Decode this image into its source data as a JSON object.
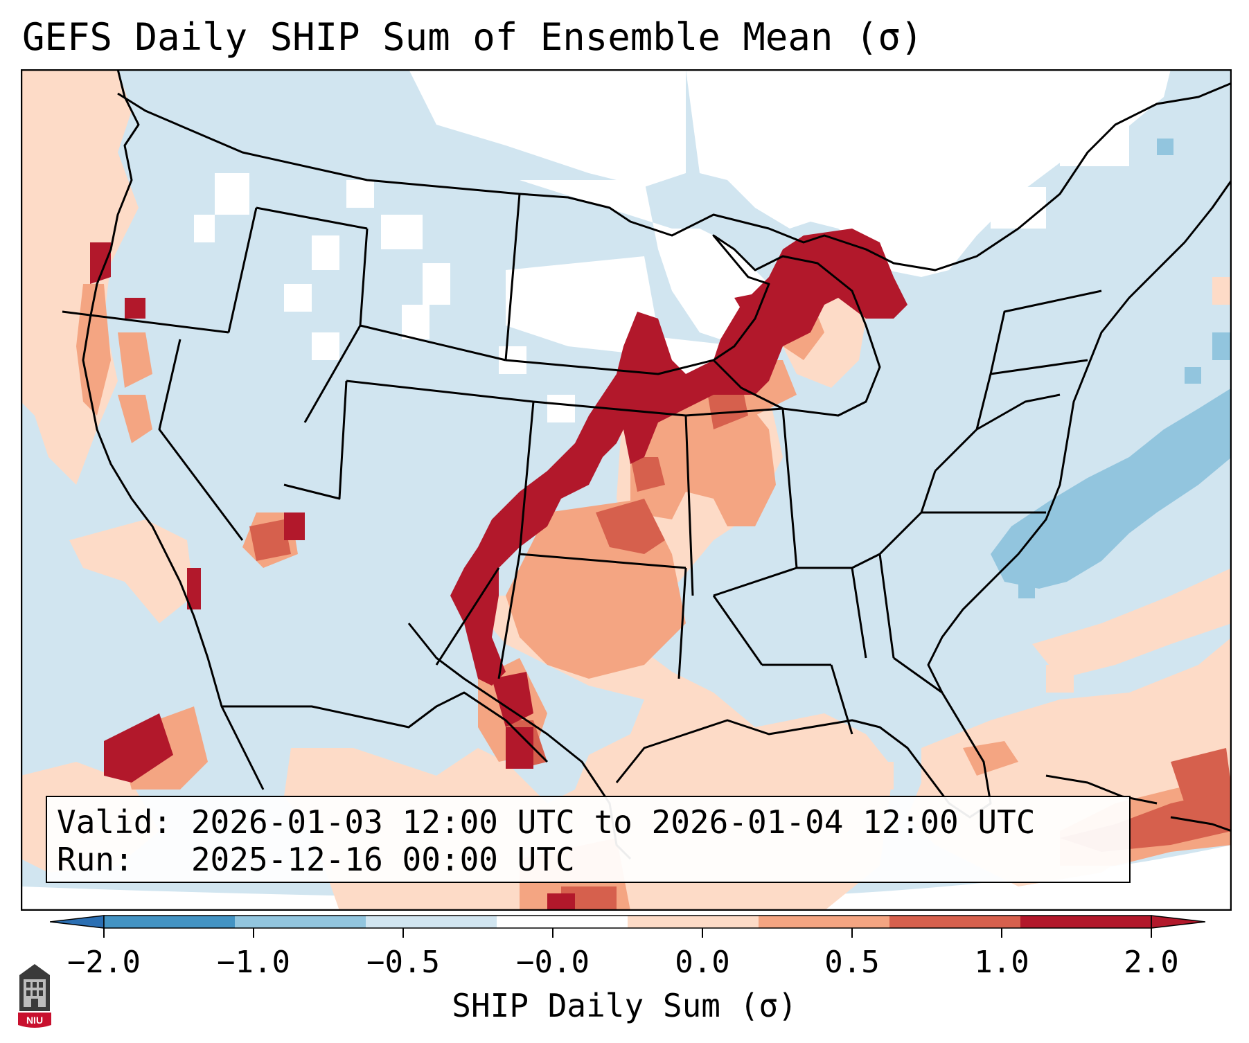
{
  "title": "GEFS Daily SHIP Sum of Ensemble Mean (σ)",
  "info": {
    "valid": "Valid: 2026-01-03 12:00 UTC to 2026-01-04 12:00 UTC",
    "run": "Run:   2025-12-16 00:00 UTC"
  },
  "colorbar": {
    "label": "SHIP Daily Sum (σ)",
    "ticks": [
      "−2.0",
      "−1.0",
      "−0.5",
      "−0.0",
      "0.0",
      "0.5",
      "1.0",
      "2.0"
    ],
    "colors": {
      "under": "#2b6fb3",
      "bins": [
        "#4393c3",
        "#92c5de",
        "#d1e5f0",
        "#ffffff",
        "#fddbc7",
        "#f4a582",
        "#d6604d",
        "#b2182b"
      ],
      "over": "#b2182b"
    },
    "extend": "both"
  },
  "logo": {
    "text": "NIU",
    "icon": "niu-seal-icon"
  }
}
